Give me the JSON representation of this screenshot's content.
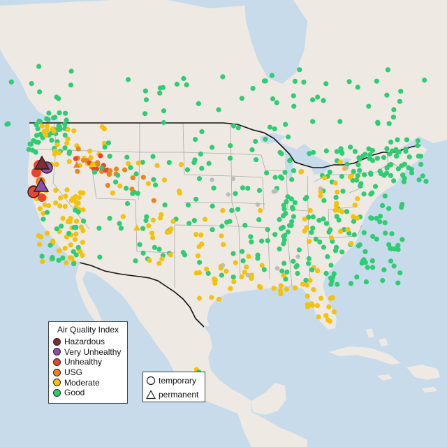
{
  "title": "",
  "legends": {
    "aqi": {
      "title": "Air Quality Index",
      "entries": [
        {
          "label": "Hazardous",
          "color": "#7e2b3a"
        },
        {
          "label": "Very Unhealthy",
          "color": "#8f4ea8"
        },
        {
          "label": "Unhealthy",
          "color": "#e8462f"
        },
        {
          "label": "USG",
          "color": "#e98520"
        },
        {
          "label": "Moderate",
          "color": "#f3c10f"
        },
        {
          "label": "Good",
          "color": "#2fcc73"
        }
      ]
    },
    "monitor_type": {
      "entries": [
        {
          "label": "temporary",
          "shape": "circle"
        },
        {
          "label": "permanent",
          "shape": "triangle"
        }
      ]
    }
  },
  "colors": {
    "ocean": "#c7dbeb",
    "land": "#eeeae3",
    "state_line": "#aaaaaa",
    "border_line": "#111111",
    "unknown_monitor": "#bbbbbb"
  }
}
